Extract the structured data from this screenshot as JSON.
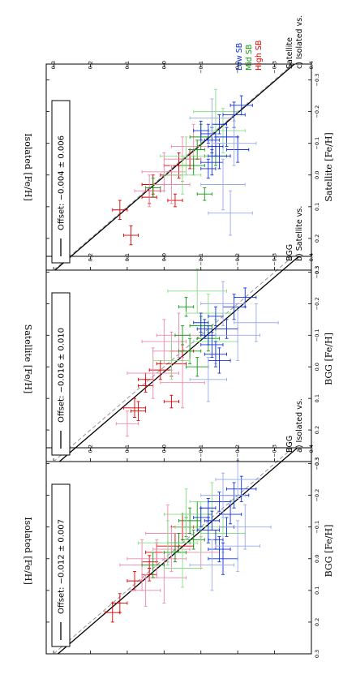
{
  "chart_data": [
    {
      "type": "scatter",
      "panel_label": "a) Isolated vs.",
      "panel_label_2": "BGG",
      "xlabel": "BGG [Fe/H]",
      "ylabel": "Isolated [Fe/H]",
      "xlim": [
        -0.35,
        0.3
      ],
      "ylim": [
        -0.4,
        0.32
      ],
      "xticks": [
        "−0.3",
        "−0.2",
        "−0.1",
        "0.0",
        "0.1",
        "0.2",
        "0.3"
      ],
      "yticks": [
        "−0.4",
        "−0.3",
        "−0.2",
        "−0.1",
        "0.0",
        "0.1",
        "0.2",
        "0.3"
      ],
      "legend": {
        "label": "Offset: −0.012 ± 0.007",
        "placement": "bottom"
      },
      "offset": -0.012,
      "series": [
        {
          "color": "#dd0000",
          "x": [
            0.17,
            0.14,
            0.05,
            0.01,
            -0.02,
            -0.04,
            -0.1,
            0.07
          ],
          "y": [
            0.14,
            0.12,
            0.04,
            0.04,
            0.02,
            -0.03,
            -0.05,
            0.08
          ],
          "ex": [
            0.03,
            0.03,
            0.02,
            0.02,
            0.03,
            0.04,
            0.04,
            0.03
          ],
          "ey": [
            0.02,
            0.02,
            0.02,
            0.02,
            0.03,
            0.05,
            0.03,
            0.02
          ]
        },
        {
          "color": "#ee88aa",
          "x": [
            0.02,
            0.0,
            -0.03,
            0.1,
            0.06,
            -0.08,
            -0.02
          ],
          "y": [
            0.06,
            0.02,
            -0.02,
            0.05,
            0.0,
            -0.01,
            -0.1
          ],
          "ex": [
            0.08,
            0.06,
            0.07,
            0.05,
            0.08,
            0.09,
            0.05
          ],
          "ey": [
            0.06,
            0.08,
            0.05,
            0.04,
            0.06,
            0.06,
            0.05
          ]
        },
        {
          "color": "#119911",
          "x": [
            0.02,
            -0.05,
            -0.1,
            -0.12,
            -0.06,
            -0.14,
            -0.02
          ],
          "y": [
            0.03,
            -0.04,
            -0.06,
            -0.07,
            -0.08,
            -0.09,
            -0.03
          ],
          "ex": [
            0.04,
            0.03,
            0.03,
            0.04,
            0.03,
            0.04,
            0.03
          ],
          "ey": [
            0.03,
            0.03,
            0.03,
            0.03,
            0.03,
            0.04,
            0.03
          ]
        },
        {
          "color": "#88dd88",
          "x": [
            -0.1,
            -0.18,
            -0.05,
            0.03,
            -0.14,
            -0.08
          ],
          "y": [
            -0.1,
            -0.13,
            -0.01,
            -0.05,
            -0.06,
            -0.16
          ],
          "ex": [
            0.08,
            0.06,
            0.07,
            0.06,
            0.08,
            0.06
          ],
          "ey": [
            0.07,
            0.06,
            0.08,
            0.05,
            0.06,
            0.06
          ]
        },
        {
          "color": "#1133dd",
          "x": [
            -0.16,
            -0.12,
            -0.09,
            -0.06,
            -0.03,
            0.0,
            -0.14,
            -0.2,
            -0.22,
            -0.18,
            -0.1,
            -0.13
          ],
          "y": [
            -0.12,
            -0.13,
            -0.12,
            -0.14,
            -0.15,
            -0.16,
            -0.18,
            -0.19,
            -0.21,
            -0.15,
            -0.17,
            -0.1
          ],
          "ex": [
            0.03,
            0.03,
            0.04,
            0.03,
            0.04,
            0.05,
            0.03,
            0.04,
            0.04,
            0.03,
            0.03,
            0.03
          ],
          "ey": [
            0.02,
            0.02,
            0.03,
            0.02,
            0.03,
            0.04,
            0.03,
            0.04,
            0.04,
            0.03,
            0.02,
            0.02
          ]
        },
        {
          "color": "#99aaee",
          "x": [
            -0.04,
            -0.2,
            -0.1,
            0.02,
            -0.25
          ],
          "y": [
            -0.2,
            -0.16,
            -0.22,
            -0.13,
            -0.2
          ],
          "ex": [
            0.08,
            0.07,
            0.07,
            0.08,
            0.06
          ],
          "ey": [
            0.06,
            0.06,
            0.07,
            0.06,
            0.06
          ]
        }
      ]
    },
    {
      "type": "scatter",
      "panel_label": "b) Satellite vs.",
      "panel_label_2": "BGG",
      "xlabel": "BGG [Fe/H]",
      "ylabel": "Satellite [Fe/H]",
      "xlim": [
        -0.35,
        0.3
      ],
      "ylim": [
        -0.4,
        0.32
      ],
      "xticks": [
        "−0.3",
        "−0.2",
        "−0.1",
        "0.0",
        "0.1",
        "0.2",
        "0.3"
      ],
      "yticks": [
        "−0.4",
        "−0.3",
        "−0.2",
        "−0.1",
        "0.0",
        "0.1",
        "0.2",
        "0.3"
      ],
      "legend": {
        "label": "Offset: −0.016 ± 0.010",
        "placement": "bottom"
      },
      "offset": -0.016,
      "series": [
        {
          "color": "#dd0000",
          "x": [
            0.14,
            0.13,
            0.06,
            0.04,
            0.01,
            -0.01,
            0.11,
            -0.05
          ],
          "y": [
            0.07,
            0.08,
            0.05,
            0.05,
            0.01,
            -0.02,
            -0.02,
            -0.05
          ],
          "ex": [
            0.03,
            0.03,
            0.02,
            0.02,
            0.03,
            0.04,
            0.02,
            0.03
          ],
          "ey": [
            0.02,
            0.03,
            0.02,
            0.02,
            0.03,
            0.04,
            0.02,
            0.03
          ]
        },
        {
          "color": "#ee88aa",
          "x": [
            0.18,
            0.02,
            -0.05,
            -0.08,
            -0.1,
            0.05
          ],
          "y": [
            0.1,
            0.03,
            -0.02,
            0.0,
            -0.04,
            -0.05
          ],
          "ex": [
            0.04,
            0.08,
            0.06,
            0.07,
            0.07,
            0.08
          ],
          "ey": [
            0.03,
            0.07,
            0.05,
            0.06,
            0.06,
            0.06
          ]
        },
        {
          "color": "#119911",
          "x": [
            -0.1,
            -0.19,
            -0.05,
            0.0,
            -0.13,
            -0.09
          ],
          "y": [
            -0.05,
            -0.06,
            -0.07,
            -0.09,
            -0.1,
            -0.12
          ],
          "ex": [
            0.03,
            0.03,
            0.04,
            0.03,
            0.03,
            0.04
          ],
          "ey": [
            0.02,
            0.02,
            0.03,
            0.03,
            0.03,
            0.03
          ]
        },
        {
          "color": "#88dd88",
          "x": [
            -0.24,
            -0.17,
            -0.02,
            -0.08
          ],
          "y": [
            -0.09,
            -0.12,
            -0.02,
            -0.14
          ],
          "ex": [
            0.07,
            0.06,
            0.06,
            0.07
          ],
          "ey": [
            0.08,
            0.06,
            0.05,
            0.06
          ]
        },
        {
          "color": "#1133dd",
          "x": [
            -0.14,
            -0.12,
            -0.1,
            -0.07,
            -0.04,
            -0.02,
            -0.12,
            -0.19,
            -0.22,
            -0.16
          ],
          "y": [
            -0.1,
            -0.11,
            -0.12,
            -0.13,
            -0.14,
            -0.15,
            -0.17,
            -0.19,
            -0.22,
            -0.14
          ],
          "ex": [
            0.03,
            0.03,
            0.03,
            0.04,
            0.04,
            0.04,
            0.03,
            0.04,
            0.03,
            0.03
          ],
          "ey": [
            0.02,
            0.02,
            0.02,
            0.03,
            0.03,
            0.03,
            0.03,
            0.03,
            0.03,
            0.02
          ]
        },
        {
          "color": "#99aaee",
          "x": [
            -0.1,
            -0.2,
            0.04,
            -0.14
          ],
          "y": [
            -0.2,
            -0.16,
            -0.12,
            -0.25
          ],
          "ex": [
            0.08,
            0.07,
            0.07,
            0.06
          ],
          "ey": [
            0.06,
            0.06,
            0.05,
            0.06
          ]
        }
      ]
    },
    {
      "type": "scatter",
      "panel_label": "c) Isolated vs.",
      "panel_label_2": "Satellite",
      "xlabel": "Satellite [Fe/H]",
      "ylabel": "Isolated [Fe/H]",
      "xlim": [
        -0.35,
        0.3
      ],
      "ylim": [
        -0.4,
        0.32
      ],
      "xticks": [
        "−0.3",
        "−0.2",
        "−0.1",
        "0.0",
        "0.1",
        "0.2",
        "0.3"
      ],
      "yticks": [
        "−0.4",
        "−0.3",
        "−0.2",
        "−0.1",
        "0.0",
        "0.1",
        "0.2",
        "0.3"
      ],
      "legend": {
        "label": "Offset: −0.004 ± 0.006",
        "placement": "bottom"
      },
      "offset": -0.004,
      "group_labels": [
        {
          "text": "High SB",
          "color": "#dd0000"
        },
        {
          "text": "Mid SB",
          "color": "#119911"
        },
        {
          "text": "Low SB",
          "color": "#1133dd"
        }
      ],
      "series": [
        {
          "color": "#dd0000",
          "x": [
            0.19,
            0.11,
            0.07,
            0.05,
            0.03,
            0.0,
            -0.03,
            0.08,
            -0.05
          ],
          "y": [
            0.09,
            0.12,
            0.04,
            0.03,
            0.03,
            -0.02,
            -0.04,
            -0.03,
            -0.07
          ],
          "ex": [
            0.03,
            0.03,
            0.02,
            0.02,
            0.03,
            0.03,
            0.04,
            0.02,
            0.03
          ],
          "ey": [
            0.02,
            0.02,
            0.02,
            0.02,
            0.03,
            0.03,
            0.04,
            0.02,
            0.03
          ]
        },
        {
          "color": "#ee88aa",
          "x": [
            0.05,
            -0.01,
            -0.05,
            0.03,
            -0.09
          ],
          "y": [
            0.04,
            0.0,
            -0.05,
            -0.02,
            -0.08
          ],
          "ex": [
            0.05,
            0.06,
            0.07,
            0.06,
            0.07
          ],
          "ey": [
            0.04,
            0.06,
            0.05,
            0.05,
            0.06
          ]
        },
        {
          "color": "#119911",
          "x": [
            0.04,
            -0.03,
            -0.08,
            -0.12,
            0.06,
            -0.06
          ],
          "y": [
            0.03,
            -0.08,
            -0.09,
            -0.1,
            -0.11,
            -0.14
          ],
          "ex": [
            0.03,
            0.03,
            0.03,
            0.04,
            0.02,
            0.03
          ],
          "ey": [
            0.02,
            0.03,
            0.02,
            0.03,
            0.02,
            0.03
          ]
        },
        {
          "color": "#88dd88",
          "x": [
            -0.2,
            -0.06,
            -0.14,
            0.0
          ],
          "y": [
            -0.14,
            -0.06,
            -0.16,
            -0.05
          ],
          "ex": [
            0.07,
            0.06,
            0.07,
            0.06
          ],
          "ey": [
            0.06,
            0.07,
            0.06,
            0.05
          ]
        },
        {
          "color": "#1133dd",
          "x": [
            -0.14,
            -0.13,
            -0.11,
            -0.09,
            -0.06,
            -0.04,
            -0.12,
            -0.19,
            -0.22,
            -0.16,
            -0.08,
            -0.02
          ],
          "y": [
            -0.1,
            -0.12,
            -0.13,
            -0.14,
            -0.15,
            -0.13,
            -0.17,
            -0.19,
            -0.21,
            -0.15,
            -0.2,
            -0.12
          ],
          "ex": [
            0.03,
            0.03,
            0.04,
            0.03,
            0.04,
            0.04,
            0.03,
            0.04,
            0.03,
            0.03,
            0.04,
            0.03
          ],
          "ey": [
            0.02,
            0.02,
            0.02,
            0.02,
            0.03,
            0.03,
            0.03,
            0.03,
            0.03,
            0.02,
            0.03,
            0.02
          ]
        },
        {
          "color": "#99aaee",
          "x": [
            0.03,
            -0.1,
            -0.18,
            0.12
          ],
          "y": [
            -0.16,
            -0.19,
            -0.13,
            -0.18
          ],
          "ex": [
            0.08,
            0.07,
            0.06,
            0.07
          ],
          "ey": [
            0.06,
            0.06,
            0.06,
            0.06
          ]
        }
      ]
    }
  ]
}
